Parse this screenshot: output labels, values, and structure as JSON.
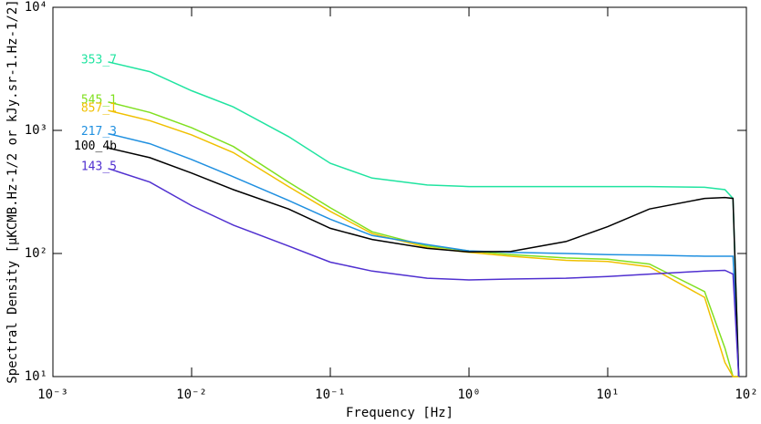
{
  "chart_data": {
    "type": "line",
    "xlabel": "Frequency [Hz]",
    "ylabel": "Spectral Density [μKCMB.Hz-1/2 or kJy.sr-1.Hz-1/2]",
    "log_x": true,
    "log_y": true,
    "x": [
      0.0025,
      0.005,
      0.01,
      0.02,
      0.05,
      0.1,
      0.2,
      0.5,
      1,
      2,
      5,
      10,
      20,
      50,
      70,
      80,
      88
    ],
    "series": [
      {
        "name": "353_7",
        "color": "#20e4a0",
        "values": [
          3600,
          3000,
          2100,
          1550,
          890,
          540,
          410,
          360,
          350,
          350,
          350,
          350,
          350,
          345,
          330,
          280,
          10
        ]
      },
      {
        "name": "545_1",
        "color": "#80e020",
        "values": [
          1700,
          1400,
          1050,
          740,
          380,
          235,
          150,
          115,
          105,
          98,
          92,
          90,
          82,
          49,
          17,
          10,
          10
        ]
      },
      {
        "name": "857_1",
        "color": "#f0c000",
        "values": [
          1450,
          1200,
          920,
          660,
          350,
          220,
          145,
          112,
          102,
          95,
          88,
          86,
          78,
          44,
          13,
          10,
          10
        ]
      },
      {
        "name": "217_3",
        "color": "#2090e0",
        "values": [
          940,
          780,
          580,
          420,
          270,
          190,
          140,
          118,
          105,
          102,
          100,
          98,
          97,
          95,
          95,
          95,
          10
        ]
      },
      {
        "name": "100_4b",
        "color": "#000000",
        "values": [
          720,
          600,
          450,
          330,
          230,
          160,
          130,
          110,
          103,
          104,
          125,
          165,
          230,
          280,
          285,
          280,
          10
        ]
      },
      {
        "name": "143_5",
        "color": "#5030d0",
        "values": [
          490,
          380,
          245,
          170,
          115,
          85,
          72,
          63,
          61,
          62,
          63,
          65,
          68,
          72,
          73,
          68,
          10
        ]
      }
    ],
    "xlim": [
      0.001,
      100
    ],
    "ylim": [
      10,
      10000
    ],
    "xticks": [
      {
        "value": 0.001,
        "label": "10⁻³"
      },
      {
        "value": 0.01,
        "label": "10⁻²"
      },
      {
        "value": 0.1,
        "label": "10⁻¹"
      },
      {
        "value": 1,
        "label": "10⁰"
      },
      {
        "value": 10,
        "label": "10¹"
      },
      {
        "value": 100,
        "label": "10²"
      }
    ],
    "yticks": [
      {
        "value": 10,
        "label": "10¹"
      },
      {
        "value": 100,
        "label": "10²"
      },
      {
        "value": 1000,
        "label": "10³"
      },
      {
        "value": 10000,
        "label": "10⁴"
      }
    ]
  }
}
